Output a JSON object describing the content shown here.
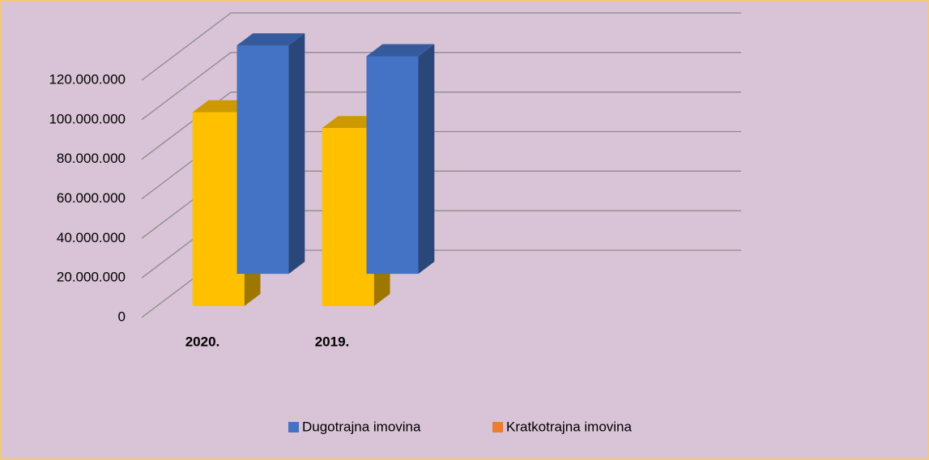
{
  "chart_data": {
    "type": "bar3d",
    "categories": [
      "2020.",
      "2019."
    ],
    "series": [
      {
        "name": "Dugotrajna imovina",
        "color": "#4472c4",
        "legend_color": "#4472c4",
        "values": [
          115500000,
          110000000
        ]
      },
      {
        "name": "Kratkotrajna imovina",
        "color": "#ffc000",
        "legend_color": "#ed7d31",
        "values": [
          98000000,
          90000000
        ]
      }
    ],
    "ylim": [
      0,
      120000000
    ],
    "yticks": [
      0,
      {
        "value": 20000000,
        "label": "20.000.000"
      },
      {
        "value": 40000000,
        "label": "40.000.000"
      },
      {
        "value": 60000000,
        "label": "60.000.000"
      },
      {
        "value": 80000000,
        "label": "80.000.000"
      },
      {
        "value": 100000000,
        "label": "100.000.000"
      },
      {
        "value": 120000000,
        "label": "120.000.000"
      }
    ],
    "grid": true,
    "legend": "bottom"
  }
}
